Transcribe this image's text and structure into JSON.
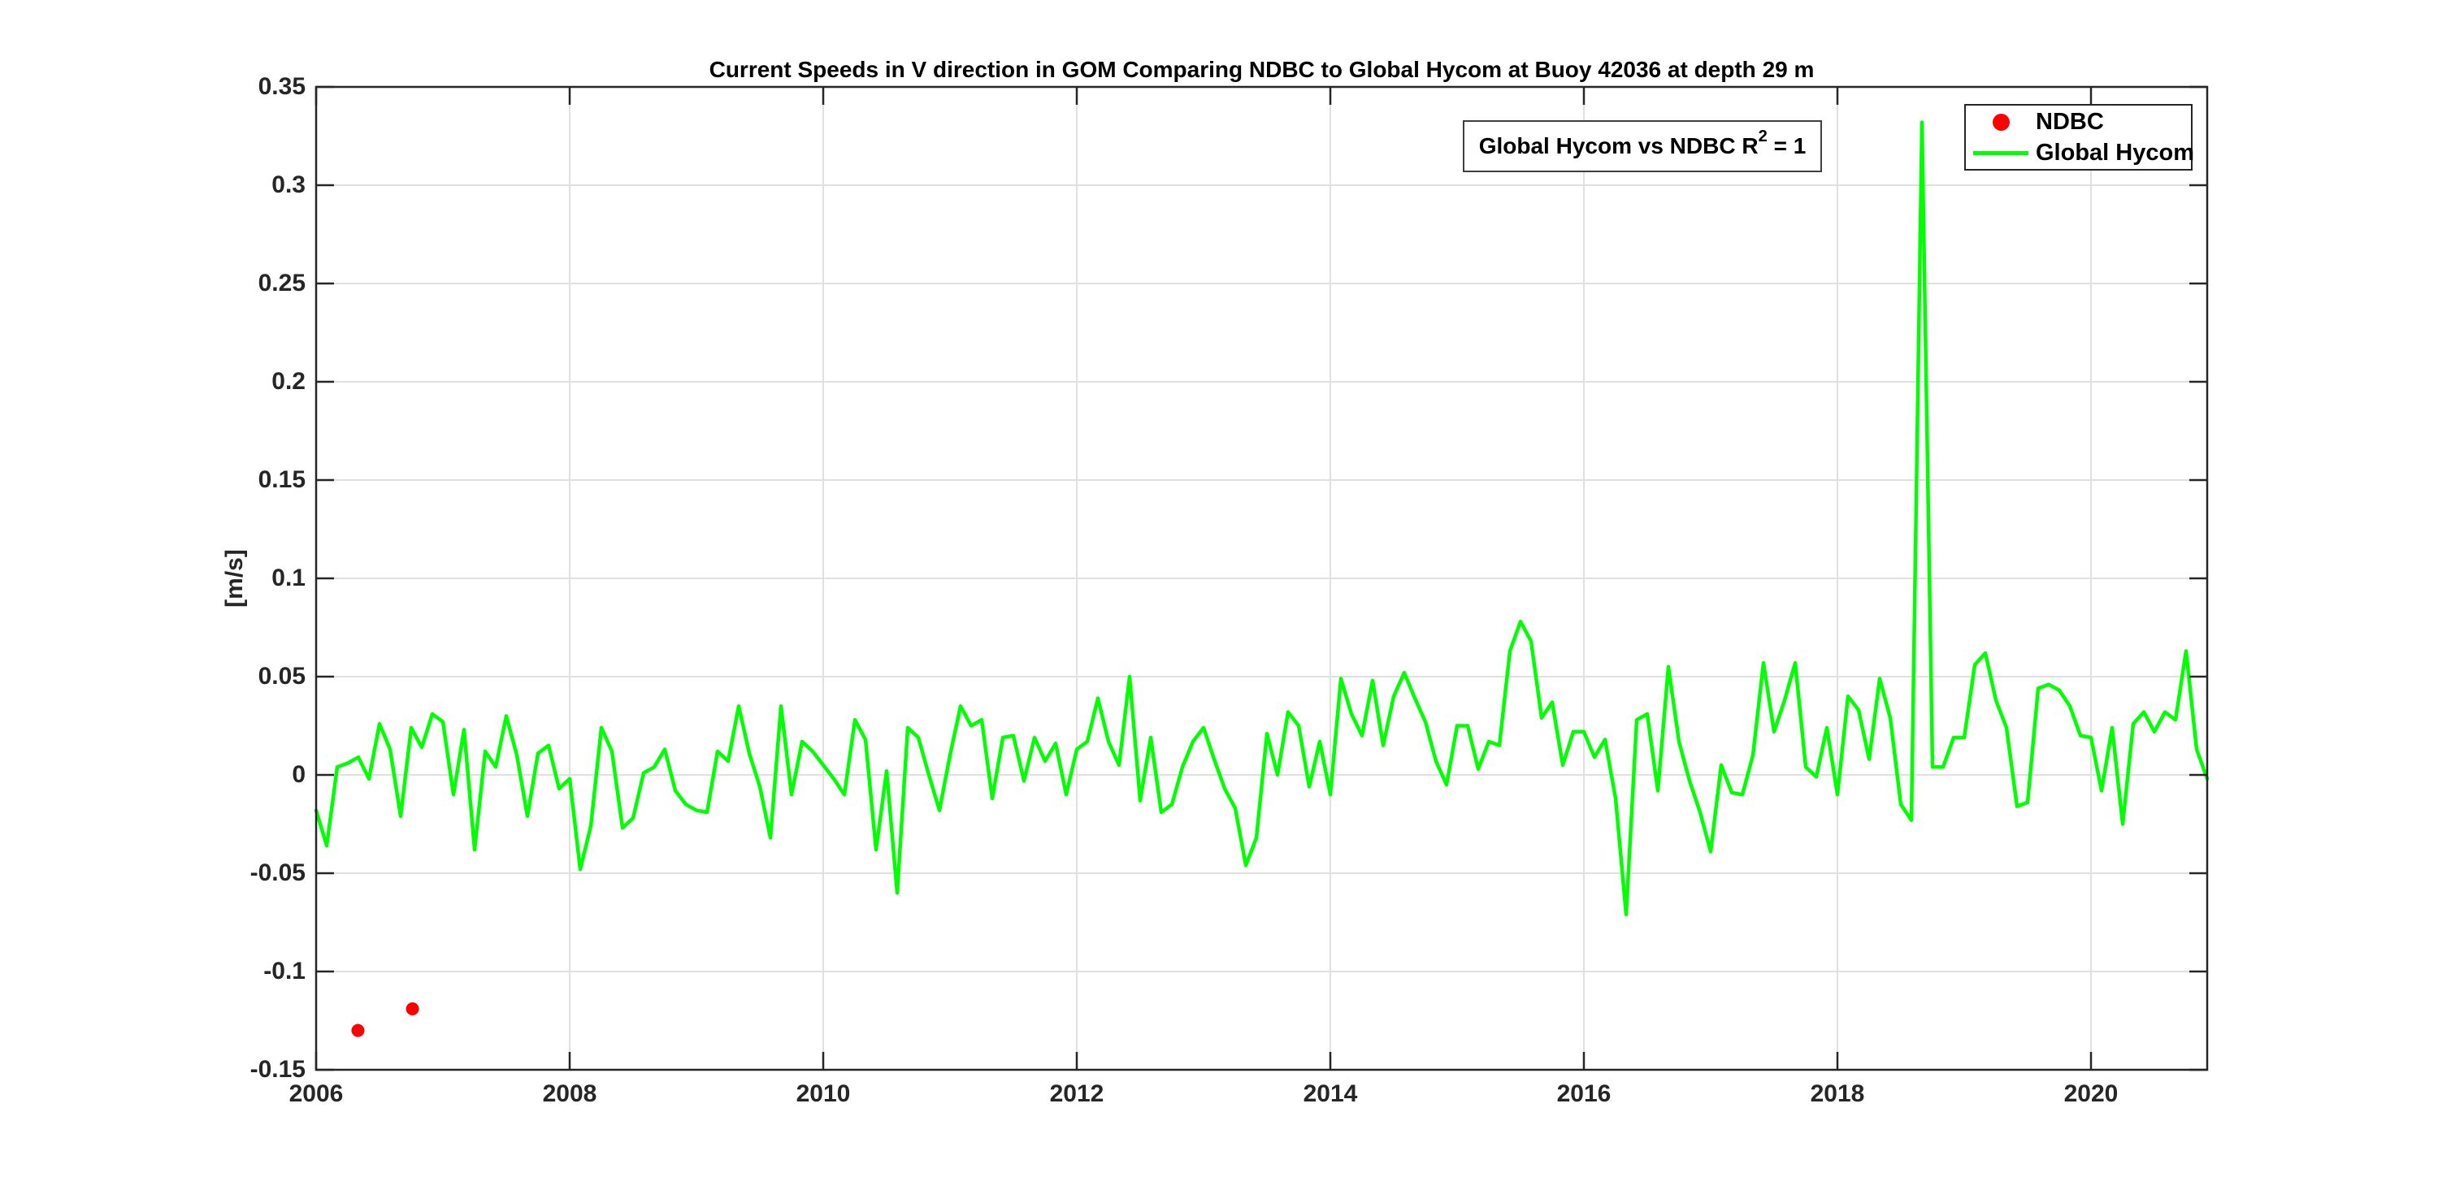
{
  "colors": {
    "hycom_line": "#00ff00",
    "ndbc_marker": "#ff0000",
    "axis": "#262626",
    "grid": "#e0e0e0",
    "background": "#ffffff"
  },
  "annotation": {
    "prefix": "Global Hycom vs NDBC R",
    "sup": "2",
    "suffix": " = 1"
  },
  "legend": {
    "entries": [
      {
        "label": "NDBC",
        "marker": "dot",
        "color": "#ff0000"
      },
      {
        "label": "Global Hycom",
        "marker": "line",
        "color": "#00ff00"
      }
    ],
    "position": "northeast"
  },
  "chart_data": {
    "type": "line",
    "title": "Current Speeds in V direction in GOM Comparing NDBC to Global Hycom at Buoy  42036  at depth  29 m",
    "xlabel": "",
    "ylabel": "[m/s]",
    "xlim": [
      2006,
      2020.9167
    ],
    "ylim": [
      -0.15,
      0.35
    ],
    "grid": true,
    "xticks": [
      2006,
      2008,
      2010,
      2012,
      2014,
      2016,
      2018,
      2020
    ],
    "xtick_labels": [
      "2006",
      "2008",
      "2010",
      "2012",
      "2014",
      "2016",
      "2018",
      "2020"
    ],
    "yticks": [
      -0.15,
      -0.1,
      -0.05,
      0,
      0.05,
      0.1,
      0.15,
      0.2,
      0.25,
      0.3,
      0.35
    ],
    "ytick_labels": [
      "-0.15",
      "-0.1",
      "-0.05",
      "0",
      "0.05",
      "0.1",
      "0.15",
      "0.2",
      "0.25",
      "0.3",
      "0.35"
    ],
    "series": [
      {
        "name": "NDBC",
        "type": "scatter",
        "color": "#ff0000",
        "points": [
          [
            2006.33,
            -0.13
          ],
          [
            2006.76,
            -0.119
          ]
        ]
      },
      {
        "name": "Global Hycom",
        "type": "line",
        "color": "#00ff00",
        "x_start": 2006.0,
        "x_step_years": 0.0833333,
        "values": [
          -0.018,
          -0.036,
          0.004,
          0.006,
          0.009,
          -0.002,
          0.026,
          0.013,
          -0.021,
          0.024,
          0.014,
          0.031,
          0.027,
          -0.01,
          0.023,
          -0.038,
          0.012,
          0.004,
          0.03,
          0.01,
          -0.021,
          0.011,
          0.015,
          -0.007,
          -0.002,
          -0.048,
          -0.026,
          0.024,
          0.012,
          -0.027,
          -0.022,
          0.001,
          0.004,
          0.013,
          -0.008,
          -0.015,
          -0.018,
          -0.019,
          0.012,
          0.007,
          0.035,
          0.011,
          -0.006,
          -0.032,
          0.035,
          -0.01,
          0.017,
          0.012,
          0.005,
          -0.002,
          -0.01,
          0.028,
          0.018,
          -0.038,
          0.002,
          -0.06,
          0.024,
          0.019,
          0.0,
          -0.018,
          0.01,
          0.035,
          0.025,
          0.028,
          -0.012,
          0.019,
          0.02,
          -0.003,
          0.019,
          0.007,
          0.016,
          -0.01,
          0.013,
          0.017,
          0.039,
          0.017,
          0.005,
          0.05,
          -0.013,
          0.019,
          -0.019,
          -0.015,
          0.004,
          0.017,
          0.024,
          0.008,
          -0.007,
          -0.017,
          -0.046,
          -0.032,
          0.021,
          0.0,
          0.032,
          0.025,
          -0.006,
          0.017,
          -0.01,
          0.049,
          0.031,
          0.02,
          0.048,
          0.015,
          0.04,
          0.052,
          0.039,
          0.027,
          0.007,
          -0.005,
          0.025,
          0.025,
          0.003,
          0.017,
          0.015,
          0.063,
          0.078,
          0.068,
          0.029,
          0.037,
          0.005,
          0.022,
          0.022,
          0.009,
          0.018,
          -0.012,
          -0.071,
          0.028,
          0.031,
          -0.008,
          0.055,
          0.017,
          -0.003,
          -0.019,
          -0.039,
          0.005,
          -0.009,
          -0.01,
          0.01,
          0.057,
          0.022,
          0.038,
          0.057,
          0.004,
          -0.001,
          0.024,
          -0.01,
          0.04,
          0.033,
          0.008,
          0.049,
          0.029,
          -0.015,
          -0.023,
          0.332,
          0.004,
          0.004,
          0.019,
          0.019,
          0.056,
          0.062,
          0.038,
          0.024,
          -0.016,
          -0.014,
          0.044,
          0.046,
          0.043,
          0.035,
          0.02,
          0.019,
          -0.008,
          0.024,
          -0.025,
          0.026,
          0.032,
          0.022,
          0.032,
          0.028,
          0.063,
          0.013,
          -0.002
        ]
      }
    ],
    "legend_position": "northeast"
  }
}
